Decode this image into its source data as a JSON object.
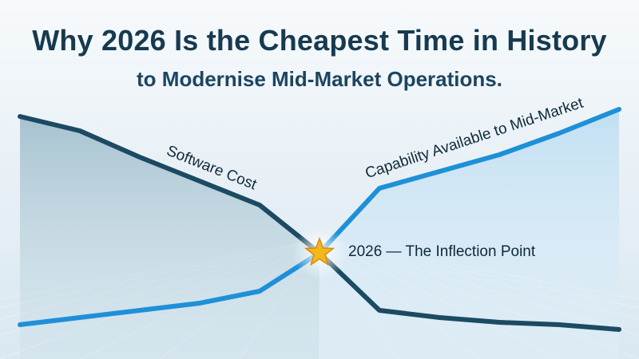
{
  "title": "Why 2026 Is the Cheapest Time in History",
  "subtitle": "to Modernise Mid-Market Operations.",
  "colors": {
    "background": "#eef4f8",
    "title": "#173a4f",
    "cost_line": "#1c4a63",
    "capability_line": "#1e90d8",
    "star": "#f5b81c"
  },
  "chart_data": {
    "type": "line",
    "title": "",
    "xlabel": "",
    "ylabel": "",
    "grid": false,
    "legend": "none",
    "x": [
      0,
      1,
      2,
      3,
      4,
      5,
      6,
      7,
      8,
      9,
      10
    ],
    "xlim": [
      0,
      10
    ],
    "ylim": [
      0,
      10
    ],
    "series": [
      {
        "name": "Software Cost",
        "color": "#1c4a63",
        "values": [
          9.3,
          8.7,
          7.6,
          6.6,
          5.6,
          3.6,
          1.2,
          0.9,
          0.7,
          0.6,
          0.4
        ]
      },
      {
        "name": "Capability Available to Mid-Market",
        "color": "#1e90d8",
        "values": [
          0.6,
          0.9,
          1.2,
          1.5,
          2.0,
          3.6,
          6.3,
          7.0,
          7.7,
          8.6,
          9.6
        ]
      }
    ],
    "annotations": [
      {
        "text": "2026 — The Inflection Point",
        "x": 5,
        "y": 3.6,
        "marker": "star-icon"
      }
    ]
  }
}
